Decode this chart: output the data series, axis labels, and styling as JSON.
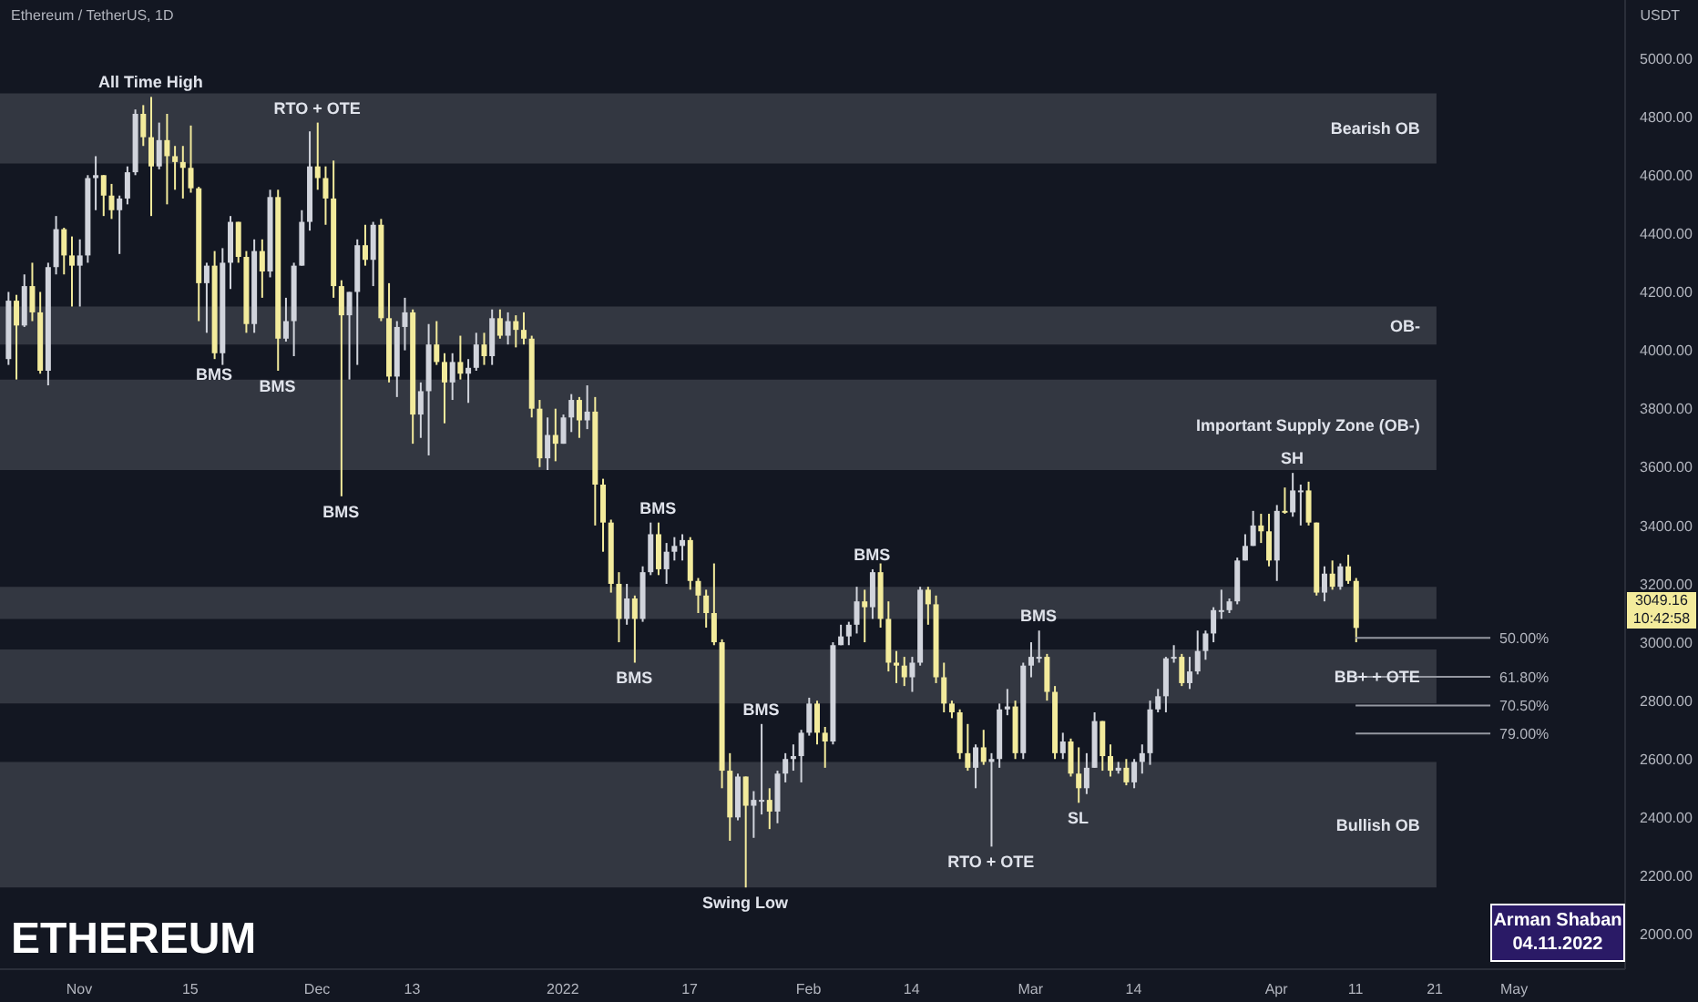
{
  "chart_data": {
    "type": "candlestick",
    "title": "Ethereum / TetherUS, 1D",
    "ylabel": "USDT",
    "x": [
      "2021-10-23",
      "2021-10-24",
      "2021-10-25",
      "2021-10-26",
      "2021-10-27",
      "2021-10-28",
      "2021-10-29",
      "2021-10-30",
      "2021-10-31",
      "2021-11-01",
      "2021-11-02",
      "2021-11-03",
      "2021-11-04",
      "2021-11-05",
      "2021-11-06",
      "2021-11-07",
      "2021-11-08",
      "2021-11-09",
      "2021-11-10",
      "2021-11-11",
      "2021-11-12",
      "2021-11-13",
      "2021-11-14",
      "2021-11-15",
      "2021-11-16",
      "2021-11-17",
      "2021-11-18",
      "2021-11-19",
      "2021-11-20",
      "2021-11-21",
      "2021-11-22",
      "2021-11-23",
      "2021-11-24",
      "2021-11-25",
      "2021-11-26",
      "2021-11-27",
      "2021-11-28",
      "2021-11-29",
      "2021-11-30",
      "2021-12-01",
      "2021-12-02",
      "2021-12-03",
      "2021-12-04",
      "2021-12-05",
      "2021-12-06",
      "2021-12-07",
      "2021-12-08",
      "2021-12-09",
      "2021-12-10",
      "2021-12-11",
      "2021-12-12",
      "2021-12-13",
      "2021-12-14",
      "2021-12-15",
      "2021-12-16",
      "2021-12-17",
      "2021-12-18",
      "2021-12-19",
      "2021-12-20",
      "2021-12-21",
      "2021-12-22",
      "2021-12-23",
      "2021-12-24",
      "2021-12-25",
      "2021-12-26",
      "2021-12-27",
      "2021-12-28",
      "2021-12-29",
      "2021-12-30",
      "2021-12-31",
      "2022-01-01",
      "2022-01-02",
      "2022-01-03",
      "2022-01-04",
      "2022-01-05",
      "2022-01-06",
      "2022-01-07",
      "2022-01-08",
      "2022-01-09",
      "2022-01-10",
      "2022-01-11",
      "2022-01-12",
      "2022-01-13",
      "2022-01-14",
      "2022-01-15",
      "2022-01-16",
      "2022-01-17",
      "2022-01-18",
      "2022-01-19",
      "2022-01-20",
      "2022-01-21",
      "2022-01-22",
      "2022-01-23",
      "2022-01-24",
      "2022-01-25",
      "2022-01-26",
      "2022-01-27",
      "2022-01-28",
      "2022-01-29",
      "2022-01-30",
      "2022-01-31",
      "2022-02-01",
      "2022-02-02",
      "2022-02-03",
      "2022-02-04",
      "2022-02-05",
      "2022-02-06",
      "2022-02-07",
      "2022-02-08",
      "2022-02-09",
      "2022-02-10",
      "2022-02-11",
      "2022-02-12",
      "2022-02-13",
      "2022-02-14",
      "2022-02-15",
      "2022-02-16",
      "2022-02-17",
      "2022-02-18",
      "2022-02-19",
      "2022-02-20",
      "2022-02-21",
      "2022-02-22",
      "2022-02-23",
      "2022-02-24",
      "2022-02-25",
      "2022-02-26",
      "2022-02-27",
      "2022-02-28",
      "2022-03-01",
      "2022-03-02",
      "2022-03-03",
      "2022-03-04",
      "2022-03-05",
      "2022-03-06",
      "2022-03-07",
      "2022-03-08",
      "2022-03-09",
      "2022-03-10",
      "2022-03-11",
      "2022-03-12",
      "2022-03-13",
      "2022-03-14",
      "2022-03-15",
      "2022-03-16",
      "2022-03-17",
      "2022-03-18",
      "2022-03-19",
      "2022-03-20",
      "2022-03-21",
      "2022-03-22",
      "2022-03-23",
      "2022-03-24",
      "2022-03-25",
      "2022-03-26",
      "2022-03-27",
      "2022-03-28",
      "2022-03-29",
      "2022-03-30",
      "2022-03-31",
      "2022-04-01",
      "2022-04-02",
      "2022-04-03",
      "2022-04-04",
      "2022-04-05",
      "2022-04-06",
      "2022-04-07",
      "2022-04-08",
      "2022-04-09",
      "2022-04-10",
      "2022-04-11"
    ],
    "ohlc": [
      [
        3970,
        4200,
        3950,
        4170
      ],
      [
        4170,
        4190,
        3900,
        4085
      ],
      [
        4085,
        4260,
        4080,
        4220
      ],
      [
        4220,
        4300,
        4100,
        4130
      ],
      [
        4130,
        4200,
        3920,
        3930
      ],
      [
        3930,
        4300,
        3880,
        4285
      ],
      [
        4285,
        4460,
        4260,
        4415
      ],
      [
        4415,
        4420,
        4260,
        4325
      ],
      [
        4325,
        4390,
        4150,
        4290
      ],
      [
        4290,
        4380,
        4150,
        4325
      ],
      [
        4325,
        4600,
        4300,
        4590
      ],
      [
        4590,
        4665,
        4480,
        4600
      ],
      [
        4600,
        4600,
        4460,
        4530
      ],
      [
        4530,
        4570,
        4450,
        4480
      ],
      [
        4480,
        4530,
        4330,
        4520
      ],
      [
        4520,
        4630,
        4500,
        4610
      ],
      [
        4610,
        4825,
        4600,
        4810
      ],
      [
        4810,
        4840,
        4700,
        4730
      ],
      [
        4730,
        4868,
        4460,
        4630
      ],
      [
        4630,
        4780,
        4620,
        4720
      ],
      [
        4720,
        4810,
        4500,
        4665
      ],
      [
        4665,
        4700,
        4550,
        4645
      ],
      [
        4645,
        4700,
        4520,
        4625
      ],
      [
        4625,
        4770,
        4540,
        4555
      ],
      [
        4555,
        4560,
        4100,
        4230
      ],
      [
        4230,
        4300,
        4060,
        4290
      ],
      [
        4290,
        4340,
        3970,
        3990
      ],
      [
        3990,
        4350,
        3950,
        4300
      ],
      [
        4300,
        4460,
        4210,
        4440
      ],
      [
        4440,
        4440,
        4300,
        4320
      ],
      [
        4320,
        4340,
        4060,
        4090
      ],
      [
        4090,
        4380,
        4060,
        4340
      ],
      [
        4340,
        4380,
        4180,
        4270
      ],
      [
        4270,
        4550,
        4250,
        4525
      ],
      [
        4525,
        4550,
        3930,
        4040
      ],
      [
        4040,
        4180,
        4030,
        4100
      ],
      [
        4100,
        4300,
        3980,
        4290
      ],
      [
        4290,
        4480,
        4290,
        4440
      ],
      [
        4440,
        4750,
        4410,
        4630
      ],
      [
        4630,
        4780,
        4550,
        4590
      ],
      [
        4590,
        4630,
        4430,
        4520
      ],
      [
        4520,
        4650,
        4180,
        4220
      ],
      [
        4220,
        4240,
        3500,
        4120
      ],
      [
        4120,
        4200,
        3900,
        4200
      ],
      [
        4200,
        4380,
        3950,
        4360
      ],
      [
        4360,
        4430,
        4290,
        4310
      ],
      [
        4310,
        4440,
        4220,
        4430
      ],
      [
        4430,
        4450,
        4100,
        4110
      ],
      [
        4110,
        4230,
        3890,
        3910
      ],
      [
        3910,
        4100,
        3840,
        4080
      ],
      [
        4080,
        4180,
        4000,
        4130
      ],
      [
        4130,
        4140,
        3680,
        3780
      ],
      [
        3780,
        3890,
        3700,
        3860
      ],
      [
        3860,
        4090,
        3640,
        4020
      ],
      [
        4020,
        4100,
        3950,
        3960
      ],
      [
        3960,
        3990,
        3750,
        3890
      ],
      [
        3890,
        3990,
        3830,
        3960
      ],
      [
        3960,
        4050,
        3900,
        3920
      ],
      [
        3920,
        3970,
        3820,
        3940
      ],
      [
        3940,
        4060,
        3930,
        4020
      ],
      [
        4020,
        4060,
        3950,
        3980
      ],
      [
        3980,
        4140,
        3950,
        4110
      ],
      [
        4110,
        4140,
        4040,
        4050
      ],
      [
        4050,
        4130,
        4020,
        4100
      ],
      [
        4100,
        4120,
        4010,
        4070
      ],
      [
        4070,
        4130,
        4020,
        4040
      ],
      [
        4040,
        4050,
        3770,
        3800
      ],
      [
        3800,
        3830,
        3600,
        3630
      ],
      [
        3630,
        3770,
        3590,
        3710
      ],
      [
        3710,
        3800,
        3620,
        3680
      ],
      [
        3680,
        3780,
        3680,
        3770
      ],
      [
        3770,
        3850,
        3720,
        3830
      ],
      [
        3830,
        3840,
        3700,
        3760
      ],
      [
        3760,
        3880,
        3730,
        3790
      ],
      [
        3790,
        3840,
        3400,
        3540
      ],
      [
        3540,
        3560,
        3310,
        3410
      ],
      [
        3410,
        3420,
        3170,
        3200
      ],
      [
        3200,
        3240,
        3000,
        3080
      ],
      [
        3080,
        3200,
        3060,
        3150
      ],
      [
        3150,
        3160,
        2930,
        3080
      ],
      [
        3080,
        3260,
        3070,
        3240
      ],
      [
        3240,
        3410,
        3230,
        3370
      ],
      [
        3370,
        3410,
        3230,
        3250
      ],
      [
        3250,
        3340,
        3200,
        3310
      ],
      [
        3310,
        3360,
        3280,
        3330
      ],
      [
        3330,
        3370,
        3280,
        3350
      ],
      [
        3350,
        3360,
        3180,
        3210
      ],
      [
        3210,
        3220,
        3100,
        3160
      ],
      [
        3160,
        3180,
        3050,
        3100
      ],
      [
        3100,
        3270,
        2990,
        3000
      ],
      [
        3000,
        3010,
        2500,
        2560
      ],
      [
        2560,
        2620,
        2320,
        2400
      ],
      [
        2400,
        2550,
        2390,
        2540
      ],
      [
        2540,
        2540,
        2160,
        2440
      ],
      [
        2440,
        2490,
        2330,
        2460
      ],
      [
        2460,
        2720,
        2410,
        2460
      ],
      [
        2460,
        2500,
        2360,
        2420
      ],
      [
        2420,
        2560,
        2380,
        2550
      ],
      [
        2550,
        2620,
        2520,
        2600
      ],
      [
        2600,
        2650,
        2560,
        2610
      ],
      [
        2610,
        2700,
        2520,
        2690
      ],
      [
        2690,
        2810,
        2680,
        2790
      ],
      [
        2790,
        2800,
        2650,
        2690
      ],
      [
        2690,
        2710,
        2570,
        2660
      ],
      [
        2660,
        3000,
        2650,
        2990
      ],
      [
        2990,
        3060,
        2990,
        3020
      ],
      [
        3020,
        3070,
        2990,
        3060
      ],
      [
        3060,
        3190,
        3030,
        3140
      ],
      [
        3140,
        3180,
        3000,
        3120
      ],
      [
        3120,
        3250,
        3080,
        3240
      ],
      [
        3240,
        3270,
        3050,
        3080
      ],
      [
        3080,
        3140,
        2900,
        2930
      ],
      [
        2930,
        2970,
        2860,
        2920
      ],
      [
        2920,
        2950,
        2850,
        2880
      ],
      [
        2880,
        2950,
        2830,
        2930
      ],
      [
        2930,
        3190,
        2920,
        3180
      ],
      [
        3180,
        3190,
        3060,
        3130
      ],
      [
        3130,
        3160,
        2860,
        2880
      ],
      [
        2880,
        2930,
        2760,
        2790
      ],
      [
        2790,
        2800,
        2740,
        2760
      ],
      [
        2760,
        2770,
        2600,
        2620
      ],
      [
        2620,
        2720,
        2560,
        2570
      ],
      [
        2570,
        2650,
        2500,
        2640
      ],
      [
        2640,
        2700,
        2580,
        2590
      ],
      [
        2590,
        2620,
        2300,
        2600
      ],
      [
        2600,
        2790,
        2570,
        2770
      ],
      [
        2770,
        2840,
        2750,
        2780
      ],
      [
        2780,
        2800,
        2600,
        2620
      ],
      [
        2620,
        2930,
        2600,
        2920
      ],
      [
        2920,
        3000,
        2880,
        2950
      ],
      [
        2950,
        3040,
        2930,
        2950
      ],
      [
        2950,
        2960,
        2800,
        2830
      ],
      [
        2830,
        2850,
        2600,
        2620
      ],
      [
        2620,
        2690,
        2600,
        2660
      ],
      [
        2660,
        2670,
        2540,
        2550
      ],
      [
        2550,
        2640,
        2450,
        2500
      ],
      [
        2500,
        2620,
        2480,
        2570
      ],
      [
        2570,
        2760,
        2570,
        2730
      ],
      [
        2730,
        2730,
        2560,
        2610
      ],
      [
        2610,
        2650,
        2540,
        2560
      ],
      [
        2560,
        2590,
        2550,
        2570
      ],
      [
        2570,
        2600,
        2510,
        2520
      ],
      [
        2520,
        2600,
        2500,
        2590
      ],
      [
        2590,
        2650,
        2550,
        2620
      ],
      [
        2620,
        2800,
        2580,
        2770
      ],
      [
        2770,
        2840,
        2760,
        2815
      ],
      [
        2815,
        2950,
        2760,
        2945
      ],
      [
        2945,
        2990,
        2930,
        2950
      ],
      [
        2950,
        2960,
        2850,
        2860
      ],
      [
        2860,
        2950,
        2840,
        2900
      ],
      [
        2900,
        3040,
        2890,
        2970
      ],
      [
        2970,
        3040,
        2940,
        3030
      ],
      [
        3030,
        3120,
        3000,
        3110
      ],
      [
        3110,
        3180,
        3080,
        3110
      ],
      [
        3110,
        3150,
        3100,
        3140
      ],
      [
        3140,
        3290,
        3130,
        3280
      ],
      [
        3280,
        3370,
        3280,
        3330
      ],
      [
        3330,
        3450,
        3330,
        3400
      ],
      [
        3400,
        3440,
        3340,
        3380
      ],
      [
        3380,
        3440,
        3260,
        3280
      ],
      [
        3280,
        3470,
        3210,
        3450
      ],
      [
        3450,
        3530,
        3440,
        3445
      ],
      [
        3445,
        3580,
        3430,
        3520
      ],
      [
        3520,
        3540,
        3400,
        3520
      ],
      [
        3520,
        3550,
        3400,
        3410
      ],
      [
        3410,
        3410,
        3160,
        3170
      ],
      [
        3170,
        3260,
        3140,
        3235
      ],
      [
        3235,
        3280,
        3180,
        3190
      ],
      [
        3190,
        3270,
        3180,
        3260
      ],
      [
        3260,
        3300,
        3200,
        3210
      ],
      [
        3210,
        3220,
        3000,
        3049
      ]
    ],
    "colors": [
      "#d1d4dc",
      "#f3eb9c",
      "#d1d4dc",
      "#f3eb9c",
      "#f3eb9c",
      "#d1d4dc",
      "#d1d4dc",
      "#f3eb9c",
      "#f3eb9c",
      "#d1d4dc",
      "#d1d4dc",
      "#d1d4dc",
      "#f3eb9c",
      "#f3eb9c",
      "#d1d4dc",
      "#d1d4dc",
      "#d1d4dc",
      "#f3eb9c",
      "#f3eb9c",
      "#d1d4dc",
      "#f3eb9c",
      "#f3eb9c",
      "#f3eb9c",
      "#f3eb9c",
      "#f3eb9c",
      "#d1d4dc",
      "#f3eb9c",
      "#d1d4dc",
      "#d1d4dc",
      "#f3eb9c",
      "#f3eb9c",
      "#d1d4dc",
      "#f3eb9c",
      "#d1d4dc",
      "#f3eb9c",
      "#d1d4dc",
      "#d1d4dc",
      "#d1d4dc",
      "#d1d4dc",
      "#f3eb9c",
      "#f3eb9c",
      "#f3eb9c",
      "#f3eb9c",
      "#d1d4dc",
      "#d1d4dc",
      "#f3eb9c",
      "#d1d4dc",
      "#f3eb9c",
      "#f3eb9c",
      "#d1d4dc",
      "#d1d4dc",
      "#f3eb9c",
      "#d1d4dc",
      "#d1d4dc",
      "#f3eb9c",
      "#f3eb9c",
      "#d1d4dc",
      "#f3eb9c",
      "#d1d4dc",
      "#d1d4dc",
      "#f3eb9c",
      "#d1d4dc",
      "#f3eb9c",
      "#d1d4dc",
      "#f3eb9c",
      "#f3eb9c",
      "#f3eb9c",
      "#f3eb9c",
      "#d1d4dc",
      "#f3eb9c",
      "#d1d4dc",
      "#d1d4dc",
      "#f3eb9c",
      "#d1d4dc",
      "#f3eb9c",
      "#f3eb9c",
      "#f3eb9c",
      "#f3eb9c",
      "#d1d4dc",
      "#f3eb9c",
      "#d1d4dc",
      "#d1d4dc",
      "#f3eb9c",
      "#d1d4dc",
      "#d1d4dc",
      "#d1d4dc",
      "#f3eb9c",
      "#f3eb9c",
      "#f3eb9c",
      "#f3eb9c",
      "#f3eb9c",
      "#f3eb9c",
      "#d1d4dc",
      "#f3eb9c",
      "#d1d4dc",
      "#d1d4dc",
      "#f3eb9c",
      "#d1d4dc",
      "#d1d4dc",
      "#d1d4dc",
      "#d1d4dc",
      "#d1d4dc",
      "#f3eb9c",
      "#f3eb9c",
      "#d1d4dc",
      "#d1d4dc",
      "#d1d4dc",
      "#d1d4dc",
      "#f3eb9c",
      "#d1d4dc",
      "#f3eb9c",
      "#f3eb9c",
      "#f3eb9c",
      "#f3eb9c",
      "#d1d4dc",
      "#d1d4dc",
      "#f3eb9c",
      "#f3eb9c",
      "#f3eb9c",
      "#f3eb9c",
      "#f3eb9c",
      "#f3eb9c",
      "#d1d4dc",
      "#f3eb9c",
      "#d1d4dc",
      "#d1d4dc",
      "#d1d4dc",
      "#f3eb9c",
      "#d1d4dc",
      "#d1d4dc",
      "#d1d4dc",
      "#f3eb9c",
      "#f3eb9c",
      "#d1d4dc",
      "#f3eb9c",
      "#f3eb9c",
      "#d1d4dc",
      "#d1d4dc",
      "#f3eb9c",
      "#f3eb9c",
      "#d1d4dc",
      "#f3eb9c",
      "#d1d4dc",
      "#d1d4dc",
      "#d1d4dc",
      "#d1d4dc",
      "#d1d4dc",
      "#d1d4dc",
      "#f3eb9c",
      "#d1d4dc",
      "#d1d4dc",
      "#d1d4dc",
      "#d1d4dc",
      "#d1d4dc",
      "#d1d4dc",
      "#d1d4dc",
      "#d1d4dc",
      "#d1d4dc",
      "#f3eb9c",
      "#f3eb9c",
      "#d1d4dc",
      "#f3eb9c",
      "#d1d4dc",
      "#d1d4dc",
      "#f3eb9c",
      "#f3eb9c",
      "#d1d4dc",
      "#f3eb9c",
      "#d1d4dc",
      "#f3eb9c",
      "#f3eb9c"
    ],
    "xlim": [
      "2021-10-22",
      "2022-05-15"
    ],
    "xticks": [
      {
        "value": "2021-11-01",
        "label": "Nov"
      },
      {
        "value": "2021-11-15",
        "label": "15"
      },
      {
        "value": "2021-12-01",
        "label": "Dec"
      },
      {
        "value": "2021-12-13",
        "label": "13"
      },
      {
        "value": "2022-01-01",
        "label": "2022"
      },
      {
        "value": "2022-01-17",
        "label": "17"
      },
      {
        "value": "2022-02-01",
        "label": "Feb"
      },
      {
        "value": "2022-02-14",
        "label": "14"
      },
      {
        "value": "2022-03-01",
        "label": "Mar"
      },
      {
        "value": "2022-03-14",
        "label": "14"
      },
      {
        "value": "2022-04-01",
        "label": "Apr"
      },
      {
        "value": "2022-04-11",
        "label": "11"
      },
      {
        "value": "2022-04-21",
        "label": "21"
      },
      {
        "value": "2022-05-01",
        "label": "May"
      }
    ],
    "ylim": [
      1880,
      5200
    ],
    "yticks": [
      {
        "value": 2000,
        "label": "2000.00"
      },
      {
        "value": 2200,
        "label": "2200.00"
      },
      {
        "value": 2400,
        "label": "2400.00"
      },
      {
        "value": 2600,
        "label": "2600.00"
      },
      {
        "value": 2800,
        "label": "2800.00"
      },
      {
        "value": 3000,
        "label": "3000.00"
      },
      {
        "value": 3200,
        "label": "3200.00"
      },
      {
        "value": 3400,
        "label": "3400.00"
      },
      {
        "value": 3600,
        "label": "3600.00"
      },
      {
        "value": 3800,
        "label": "3800.00"
      },
      {
        "value": 4000,
        "label": "4000.00"
      },
      {
        "value": 4200,
        "label": "4200.00"
      },
      {
        "value": 4400,
        "label": "4400.00"
      },
      {
        "value": 4600,
        "label": "4600.00"
      },
      {
        "value": 4800,
        "label": "4800.00"
      },
      {
        "value": 5000,
        "label": "5000.00"
      }
    ],
    "bands": [
      {
        "axis": "y",
        "from": 4640,
        "to": 4880,
        "label": "Bearish OB",
        "color": "#4a4d57"
      },
      {
        "axis": "y",
        "from": 4020,
        "to": 4150,
        "label": "OB-",
        "color": "#4a4d57"
      },
      {
        "axis": "y",
        "from": 3590,
        "to": 3900,
        "label": "Important Supply Zone (OB-)",
        "color": "#4a4d57"
      },
      {
        "axis": "y",
        "from": 3080,
        "to": 3190,
        "label": null,
        "color": "#4a4d57"
      },
      {
        "axis": "y",
        "from": 2790,
        "to": 2975,
        "label": "BB+ + OTE",
        "color": "#4a4d57"
      },
      {
        "axis": "y",
        "from": 2160,
        "to": 2590,
        "label": "Bullish OB",
        "color": "#4a4d57"
      }
    ],
    "ref_lines": [
      {
        "axis": "y",
        "value": 3015,
        "color": "#9598a1"
      },
      {
        "axis": "y",
        "value": 2882,
        "color": "#9598a1"
      },
      {
        "axis": "y",
        "value": 2783,
        "color": "#9598a1"
      },
      {
        "axis": "y",
        "value": 2687,
        "color": "#9598a1"
      }
    ],
    "annotations": [
      "ETHEREUM",
      "Arman Shaban",
      "04.11.2022",
      "3049.16",
      "10:42:58",
      {
        "text": "All Time High",
        "x": "2021-11-10",
        "y": 4868
      },
      {
        "text": "RTO + OTE",
        "x": "2021-12-01",
        "y": 4780
      },
      {
        "text": "BMS",
        "x": "2021-11-18",
        "y": 3970
      },
      {
        "text": "BMS",
        "x": "2021-11-26",
        "y": 3930
      },
      {
        "text": "BMS",
        "x": "2021-12-04",
        "y": 3500
      },
      {
        "text": "BMS",
        "x": "2022-01-13",
        "y": 3410
      },
      {
        "text": "BMS",
        "x": "2022-01-10",
        "y": 2930
      },
      {
        "text": "BMS",
        "x": "2022-01-26",
        "y": 2720
      },
      {
        "text": "Swing Low",
        "x": "2022-01-24",
        "y": 2160
      },
      {
        "text": "BMS",
        "x": "2022-02-09",
        "y": 3250
      },
      {
        "text": "RTO + OTE",
        "x": "2022-02-24",
        "y": 2300
      },
      {
        "text": "BMS",
        "x": "2022-03-02",
        "y": 3040
      },
      {
        "text": "SL",
        "x": "2022-03-07",
        "y": 2450
      },
      {
        "text": "SH",
        "x": "2022-04-03",
        "y": 3580
      },
      {
        "text": "50.00%",
        "x": "2022-04-28",
        "y": 3015
      },
      {
        "text": "61.80%",
        "x": "2022-04-28",
        "y": 2882
      },
      {
        "text": "70.50%",
        "x": "2022-04-28",
        "y": 2783
      },
      {
        "text": "79.00%",
        "x": "2022-04-28",
        "y": 2687
      }
    ]
  }
}
